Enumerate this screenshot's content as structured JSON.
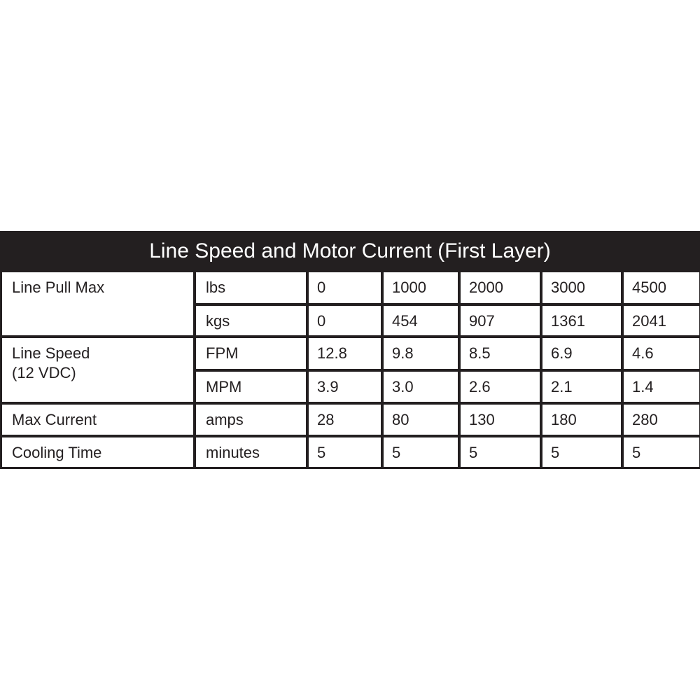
{
  "title": "Line Speed and Motor Current (First Layer)",
  "rows": [
    {
      "label": "Line Pull Max",
      "unit": "lbs",
      "values": [
        "0",
        "1000",
        "2000",
        "3000",
        "4500"
      ]
    },
    {
      "label": "",
      "unit": "kgs",
      "values": [
        "0",
        "454",
        "907",
        "1361",
        "2041"
      ]
    },
    {
      "label": "Line Speed",
      "label2": "(12 VDC)",
      "unit": "FPM",
      "values": [
        "12.8",
        "9.8",
        "8.5",
        "6.9",
        "4.6"
      ]
    },
    {
      "label": "",
      "unit": "MPM",
      "values": [
        "3.9",
        "3.0",
        "2.6",
        "2.1",
        "1.4"
      ]
    },
    {
      "label": "Max Current",
      "unit": "amps",
      "values": [
        "28",
        "80",
        "130",
        "180",
        "280"
      ]
    },
    {
      "label": "Cooling Time",
      "unit": "minutes",
      "values": [
        "5",
        "5",
        "5",
        "5",
        "5"
      ]
    }
  ],
  "colors": {
    "header_bg": "#231f20",
    "header_text": "#ffffff"
  }
}
